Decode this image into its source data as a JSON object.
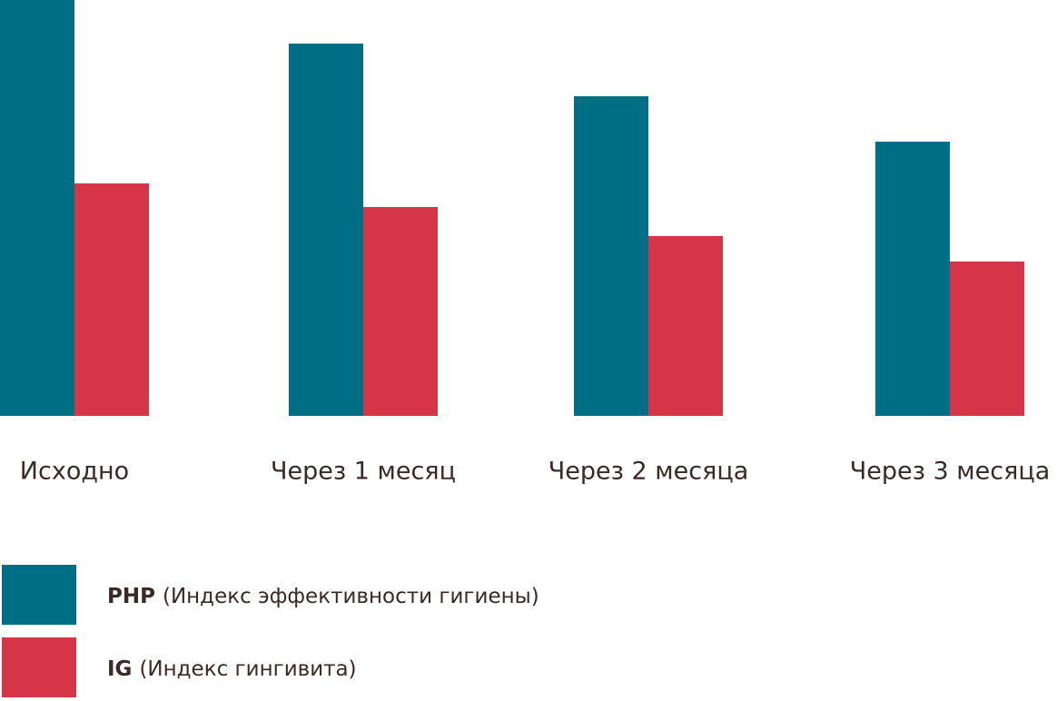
{
  "chart_data": {
    "type": "bar",
    "categories": [
      "Исходно",
      "Через 1 месяц",
      "Через 2 месяца",
      "Через 3 месяца"
    ],
    "series": [
      {
        "name": "PHP",
        "description": "(Индекс эффективности гигиены)",
        "color": "#006e85",
        "values": [
          45.8,
          41,
          35.2,
          30.2
        ]
      },
      {
        "name": "IG",
        "description": "(Индекс гингивита)",
        "color": "#d63447",
        "values": [
          25.6,
          23,
          19.8,
          17
        ]
      }
    ],
    "ylim": [
      0,
      45.8
    ]
  }
}
